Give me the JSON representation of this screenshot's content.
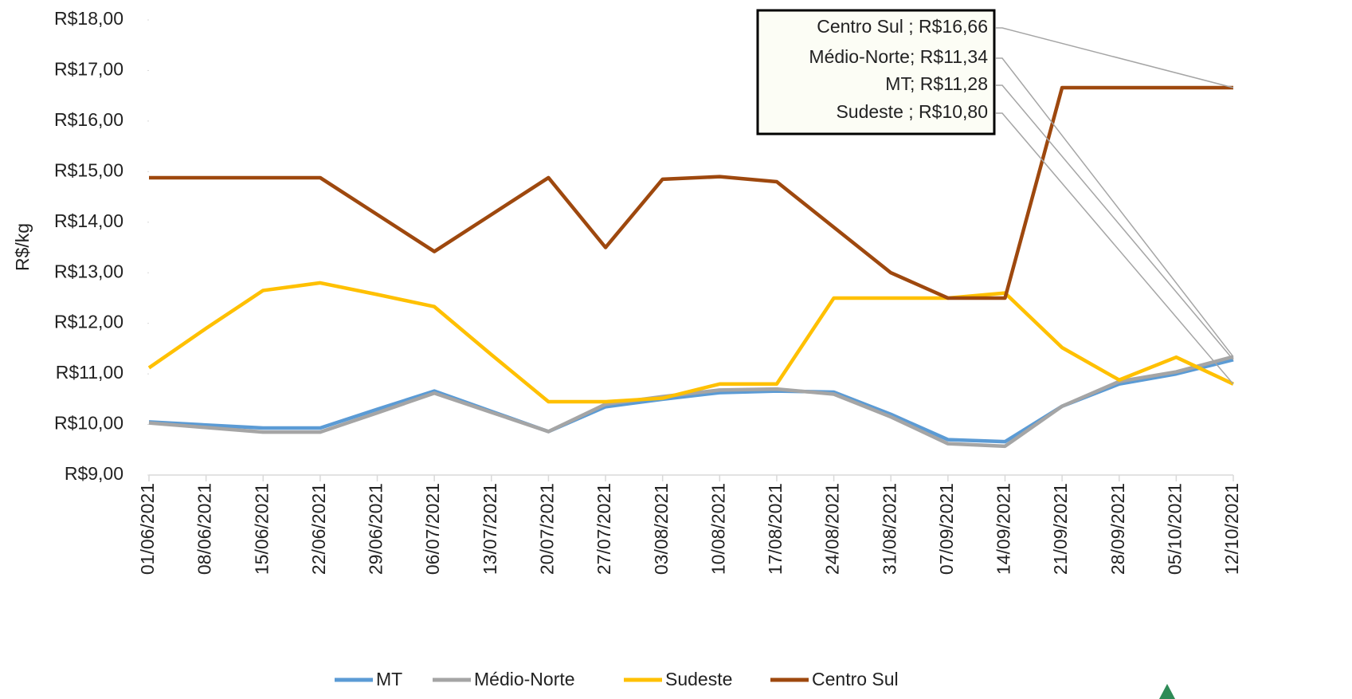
{
  "chart_data": {
    "type": "line",
    "y_label": "R$/kg",
    "categories": [
      "01/06/2021",
      "08/06/2021",
      "15/06/2021",
      "22/06/2021",
      "29/06/2021",
      "06/07/2021",
      "13/07/2021",
      "20/07/2021",
      "27/07/2021",
      "03/08/2021",
      "10/08/2021",
      "17/08/2021",
      "24/08/2021",
      "31/08/2021",
      "07/09/2021",
      "14/09/2021",
      "21/09/2021",
      "28/09/2021",
      "05/10/2021",
      "12/10/2021"
    ],
    "series": [
      {
        "name": "MT",
        "color": "#5b9bd5",
        "values": [
          10.05,
          9.99,
          9.93,
          9.93,
          10.3,
          10.66,
          10.26,
          9.86,
          10.35,
          10.5,
          10.63,
          10.66,
          10.64,
          10.2,
          9.7,
          9.66,
          10.36,
          10.8,
          11.0,
          11.28
        ]
      },
      {
        "name": "Médio-Norte",
        "color": "#a5a5a5",
        "values": [
          10.03,
          9.94,
          9.85,
          9.85,
          10.23,
          10.62,
          10.24,
          9.86,
          10.4,
          10.55,
          10.68,
          10.7,
          10.6,
          10.15,
          9.62,
          9.57,
          10.36,
          10.85,
          11.04,
          11.34
        ]
      },
      {
        "name": "Sudeste",
        "color": "#ffc000",
        "values": [
          11.12,
          11.9,
          12.65,
          12.8,
          12.57,
          12.33,
          11.38,
          10.45,
          10.45,
          10.52,
          10.8,
          10.8,
          12.5,
          12.5,
          12.5,
          12.6,
          11.52,
          10.88,
          11.33,
          10.8
        ]
      },
      {
        "name": "Centro Sul",
        "color": "#9e480e",
        "values": [
          14.88,
          14.88,
          14.88,
          14.88,
          14.15,
          13.42,
          14.15,
          14.88,
          13.5,
          14.85,
          14.9,
          14.8,
          13.9,
          13.0,
          12.5,
          12.5,
          16.66,
          16.66,
          16.66,
          16.66
        ]
      }
    ],
    "ylim": [
      9,
      18
    ],
    "yticks": [
      {
        "value": 9,
        "label": "R$9,00"
      },
      {
        "value": 10,
        "label": "R$10,00"
      },
      {
        "value": 11,
        "label": "R$11,00"
      },
      {
        "value": 12,
        "label": "R$12,00"
      },
      {
        "value": 13,
        "label": "R$13,00"
      },
      {
        "value": 14,
        "label": "R$14,00"
      },
      {
        "value": 15,
        "label": "R$15,00"
      },
      {
        "value": 16,
        "label": "R$16,00"
      },
      {
        "value": 17,
        "label": "R$17,00"
      },
      {
        "value": 18,
        "label": "R$18,00"
      }
    ],
    "annotations": [
      "Centro Sul ;  R$16,66",
      "Médio-Norte;  R$11,34",
      "MT;  R$11,28",
      "Sudeste ;  R$10,80"
    ],
    "legend": "bottom"
  }
}
